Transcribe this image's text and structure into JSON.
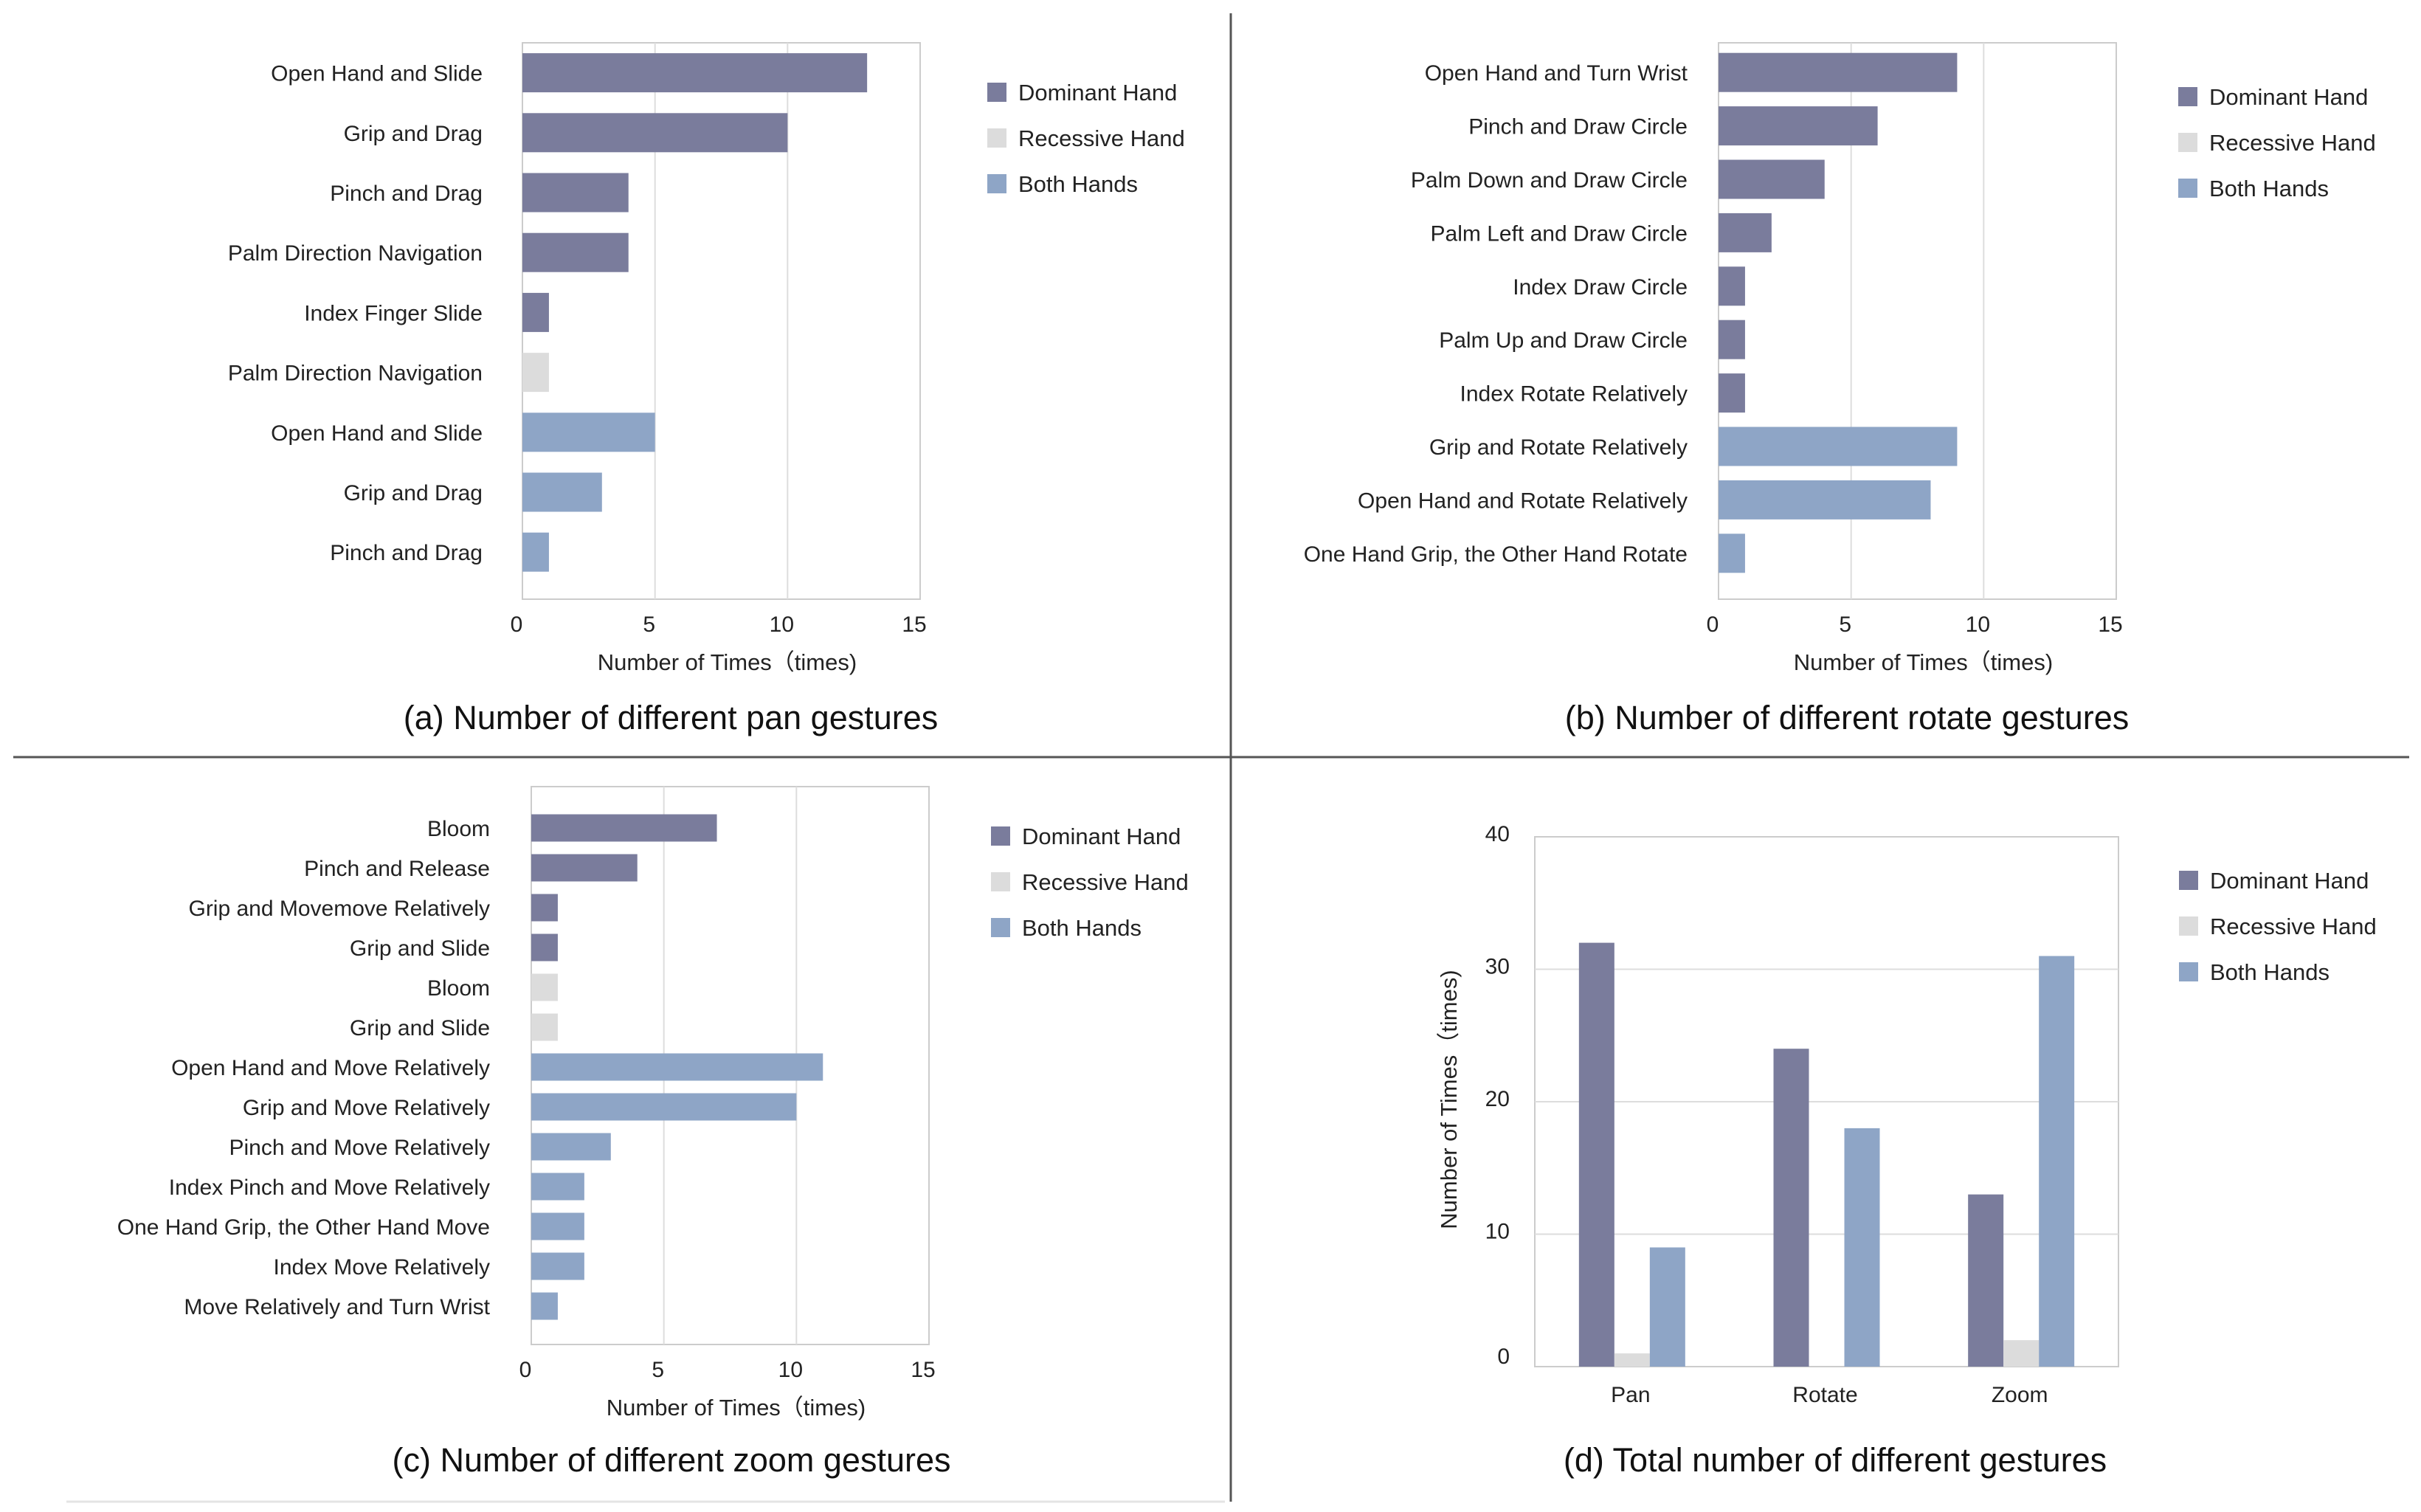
{
  "colors": {
    "dominant": "#7a7c9c",
    "recessive": "#dcdcdc",
    "both": "#8ea5c6",
    "grid": "#dddddd",
    "frame": "#cccccc",
    "divider": "#555555"
  },
  "legend": [
    "Dominant Hand",
    "Recessive Hand",
    "Both Hands"
  ],
  "chart_data": [
    {
      "id": "a",
      "type": "bar",
      "orientation": "horizontal",
      "title": "(a) Number of different pan gestures",
      "xlabel": "Number of Times（times)",
      "xlim": [
        0,
        15
      ],
      "xticks": [
        "0",
        "5",
        "10",
        "15"
      ],
      "categories": [
        "Open Hand and Slide",
        "Grip and Drag",
        "Pinch and Drag",
        "Palm Direction Navigation",
        "Index Finger Slide",
        "Palm Direction Navigation",
        "Open Hand and Slide",
        "Grip and Drag",
        "Pinch and Drag"
      ],
      "values": [
        13,
        10,
        4,
        4,
        1,
        1,
        5,
        3,
        1
      ],
      "groups": [
        "dominant",
        "dominant",
        "dominant",
        "dominant",
        "dominant",
        "recessive",
        "both",
        "both",
        "both"
      ]
    },
    {
      "id": "b",
      "type": "bar",
      "orientation": "horizontal",
      "title": "(b) Number of different rotate gestures",
      "xlabel": "Number of Times（times)",
      "xlim": [
        0,
        15
      ],
      "xticks": [
        "0",
        "5",
        "10",
        "15"
      ],
      "categories": [
        "Open Hand and Turn Wrist",
        "Pinch and Draw Circle",
        "Palm Down and Draw Circle",
        "Palm Left and Draw Circle",
        "Index Draw Circle",
        "Palm Up and Draw Circle",
        "Index Rotate Relatively",
        "Grip and Rotate Relatively",
        "Open Hand and Rotate Relatively",
        "One Hand Grip, the Other Hand Rotate"
      ],
      "values": [
        9,
        6,
        4,
        2,
        1,
        1,
        1,
        9,
        8,
        1
      ],
      "groups": [
        "dominant",
        "dominant",
        "dominant",
        "dominant",
        "dominant",
        "dominant",
        "dominant",
        "both",
        "both",
        "both"
      ]
    },
    {
      "id": "c",
      "type": "bar",
      "orientation": "horizontal",
      "title": "(c) Number of different zoom gestures",
      "xlabel": "Number of Times（times)",
      "xlim": [
        0,
        15
      ],
      "xticks": [
        "0",
        "5",
        "10",
        "15"
      ],
      "categories": [
        "Bloom",
        "Pinch and Release",
        "Grip and Movemove Relatively",
        "Grip and Slide",
        "Bloom",
        "Grip and Slide",
        "Open Hand and Move Relatively",
        "Grip and Move Relatively",
        "Pinch and Move Relatively",
        "Index Pinch and Move Relatively",
        "One Hand Grip, the Other Hand Move",
        "Index Move Relatively",
        "Move Relatively and  Turn Wrist"
      ],
      "values": [
        7,
        4,
        1,
        1,
        1,
        1,
        11,
        10,
        3,
        2,
        2,
        2,
        1
      ],
      "groups": [
        "dominant",
        "dominant",
        "dominant",
        "dominant",
        "recessive",
        "recessive",
        "both",
        "both",
        "both",
        "both",
        "both",
        "both",
        "both"
      ]
    },
    {
      "id": "d",
      "type": "bar",
      "orientation": "vertical",
      "title": "(d) Total number of different gestures",
      "ylabel": "Number of Times（times)",
      "ylim": [
        0,
        40
      ],
      "yticks": [
        "0",
        "10",
        "20",
        "30",
        "40"
      ],
      "categories": [
        "Pan",
        "Rotate",
        "Zoom"
      ],
      "series": [
        {
          "name": "Dominant Hand",
          "group": "dominant",
          "values": [
            32,
            24,
            13
          ]
        },
        {
          "name": "Recessive Hand",
          "group": "recessive",
          "values": [
            1,
            0,
            2
          ]
        },
        {
          "name": "Both Hands",
          "group": "both",
          "values": [
            9,
            18,
            31
          ]
        }
      ]
    }
  ]
}
